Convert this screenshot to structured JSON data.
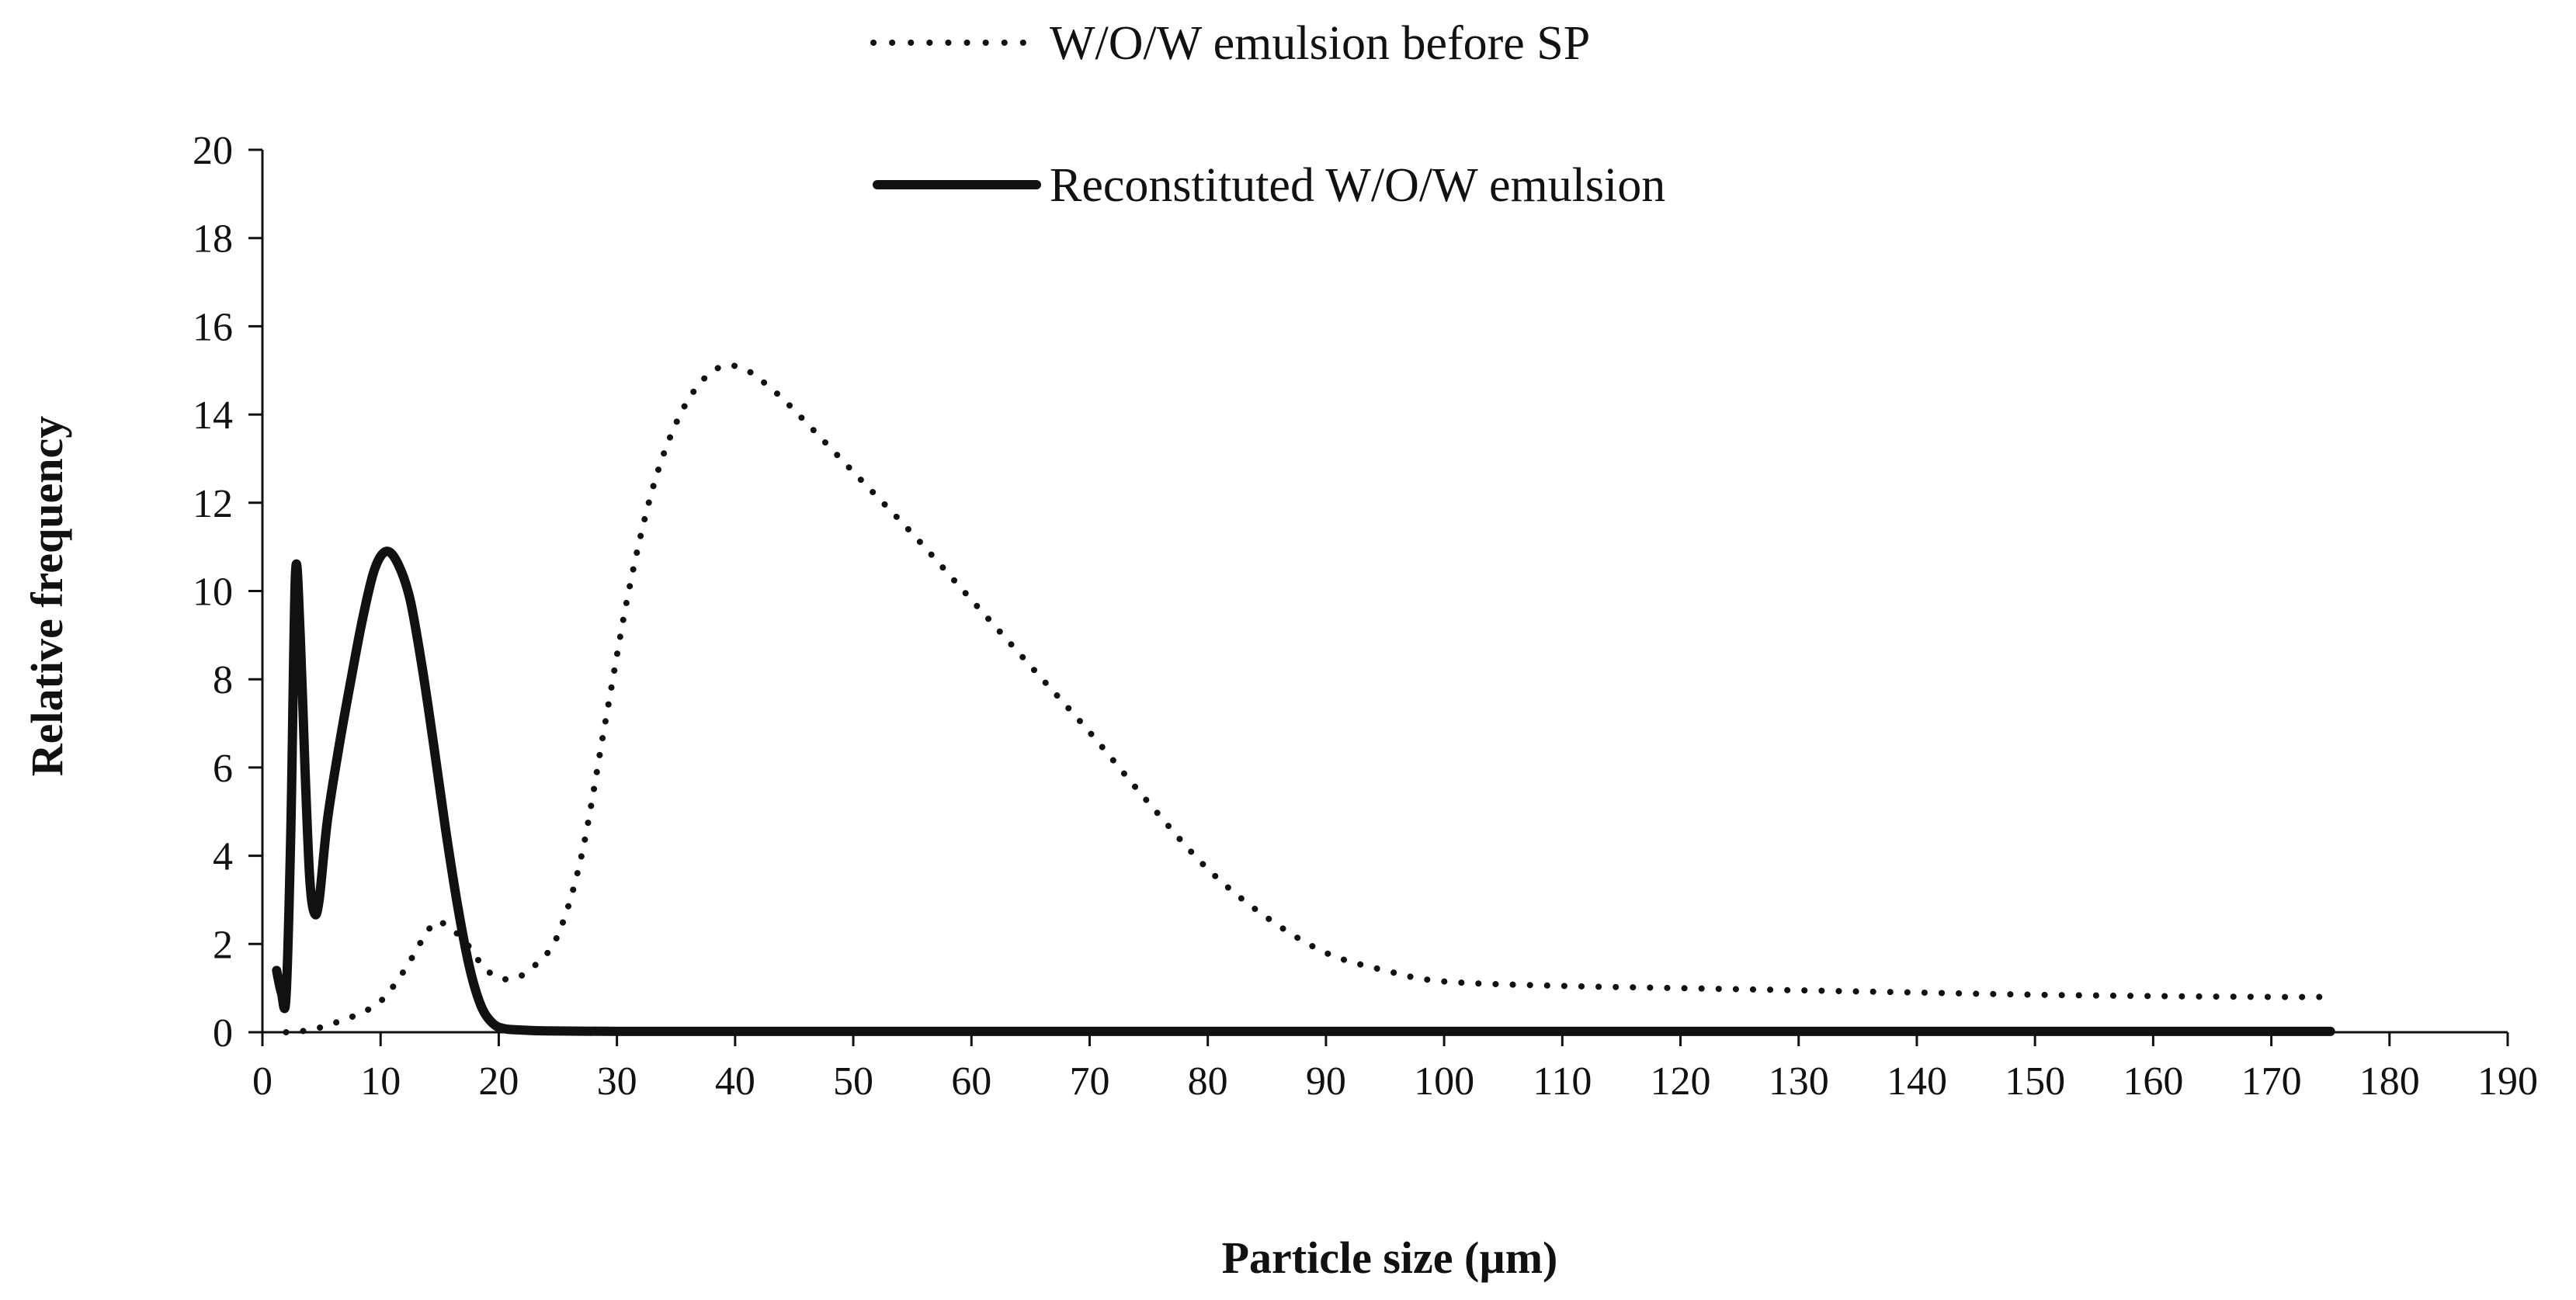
{
  "chart_data": {
    "type": "line",
    "title": "",
    "xlabel": "Particle size (µm)",
    "ylabel": "Relative frequency",
    "xlim": [
      0,
      190
    ],
    "ylim": [
      0,
      20
    ],
    "xticks": [
      0,
      10,
      20,
      30,
      40,
      50,
      60,
      70,
      80,
      90,
      100,
      110,
      120,
      130,
      140,
      150,
      160,
      170,
      180,
      190
    ],
    "yticks": [
      0,
      2,
      4,
      6,
      8,
      10,
      12,
      14,
      16,
      18,
      20
    ],
    "grid": false,
    "legend_position": "top-center",
    "series": [
      {
        "name": "W/O/W emulsion before SP",
        "style": "dotted",
        "color": "#111111",
        "x": [
          2,
          4,
          6,
          8,
          10,
          12,
          14,
          15,
          17,
          19,
          21,
          23,
          25,
          27,
          29,
          31,
          33,
          35,
          37,
          39,
          41,
          43,
          45,
          50,
          55,
          60,
          65,
          70,
          75,
          80,
          85,
          90,
          95,
          100,
          110,
          120,
          130,
          140,
          150,
          160,
          170,
          175
        ],
        "values": [
          0.0,
          0.05,
          0.2,
          0.4,
          0.7,
          1.4,
          2.3,
          2.5,
          2.1,
          1.4,
          1.2,
          1.5,
          2.2,
          4.0,
          7.0,
          10.0,
          12.3,
          13.8,
          14.7,
          15.1,
          15.0,
          14.6,
          14.1,
          12.7,
          11.3,
          9.8,
          8.3,
          6.8,
          5.2,
          3.7,
          2.6,
          1.8,
          1.4,
          1.15,
          1.05,
          1.0,
          0.95,
          0.9,
          0.85,
          0.82,
          0.8,
          0.8
        ]
      },
      {
        "name": "Reconstituted W/O/W emulsion",
        "style": "solid",
        "color": "#111111",
        "x": [
          1.2,
          1.6,
          2.0,
          2.4,
          2.8,
          3.2,
          3.6,
          4.0,
          4.4,
          4.8,
          5.5,
          6.5,
          7.5,
          8.5,
          9.5,
          10.5,
          11.5,
          12.5,
          13.5,
          14.5,
          15.5,
          16.5,
          17.5,
          18.5,
          19.5,
          20.5,
          22,
          24,
          30,
          40,
          60,
          80,
          100,
          120,
          140,
          160,
          175
        ],
        "values": [
          1.4,
          0.9,
          0.8,
          4.5,
          10.4,
          9.0,
          6.0,
          3.5,
          2.7,
          3.0,
          4.8,
          6.5,
          8.0,
          9.4,
          10.5,
          10.9,
          10.6,
          9.8,
          8.3,
          6.5,
          4.6,
          2.9,
          1.5,
          0.6,
          0.2,
          0.08,
          0.05,
          0.03,
          0.02,
          0.02,
          0.02,
          0.02,
          0.02,
          0.02,
          0.02,
          0.02,
          0.02
        ]
      }
    ]
  }
}
